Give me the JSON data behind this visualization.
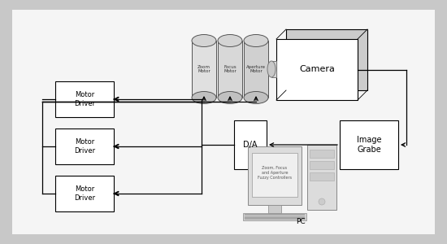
{
  "bg_color": "#c8c8c8",
  "panel_bg": "#f5f5f5",
  "camera_label": "Camera",
  "image_grab_label": "Image\nGrabe",
  "da_label": "D/A",
  "motor_labels": [
    "Motor\nDriver",
    "Motor\nDriver",
    "Motor\nDriver"
  ],
  "pc_label": "PC",
  "fuzzy_label": "Zoom, Focus\nand Aperture\nFuzzy Controllers",
  "cyl_labels": [
    "Zoom\nMotor",
    "Focus\nMotor",
    "Aperture\nMotor"
  ]
}
